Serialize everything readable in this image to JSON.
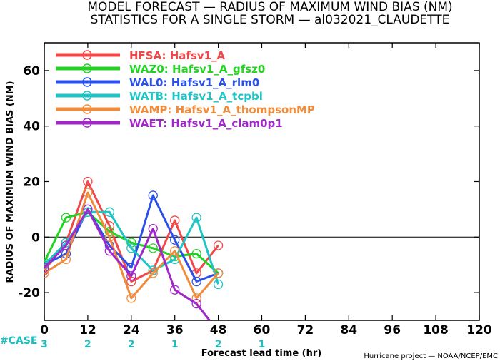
{
  "title_line1": "MODEL FORECAST — RADIUS OF MAXIMUM WIND BIAS (NM)",
  "title_line2": "STATISTICS FOR A SINGLE STORM — al032021_CLAUDETTE",
  "credit": "Hurricane project — NOAA/NCEP/EMC",
  "case_label": "#CASE",
  "chart_data": {
    "type": "line",
    "xlabel": "Forecast lead time (hr)",
    "ylabel": "RADIUS OF MAXIMUM WIND BIAS (NM)",
    "xlim": [
      0,
      120
    ],
    "ylim": [
      -30,
      70
    ],
    "xticks": [
      0,
      12,
      24,
      36,
      48,
      60,
      72,
      84,
      96,
      108,
      120
    ],
    "yticks": [
      -20,
      0,
      20,
      40,
      60
    ],
    "zero_line": true,
    "grid": false,
    "legend_position": "top-left",
    "cases": {
      "x": [
        0,
        12,
        24,
        36,
        48,
        60
      ],
      "counts": [
        "3",
        "2",
        "2",
        "1",
        "2",
        "1"
      ]
    },
    "series": [
      {
        "name": "HFSA: Hafsv1_A",
        "color": "#f04848",
        "x": [
          0,
          6,
          12,
          18,
          24,
          30,
          36,
          42,
          48
        ],
        "y": [
          -12,
          -2,
          20,
          4,
          -16,
          -12,
          6,
          -13,
          -3
        ]
      },
      {
        "name": "WAZ0: Hafsv1_A_gfsz0",
        "color": "#22d322",
        "x": [
          0,
          6,
          12,
          18,
          24,
          30,
          36,
          42,
          48
        ],
        "y": [
          -9,
          7,
          9,
          2,
          -2,
          -4,
          -7,
          -6,
          -13
        ]
      },
      {
        "name": "WAL0: Hafsv1_A_rlm0",
        "color": "#2a50e8",
        "x": [
          0,
          6,
          12,
          18,
          24,
          30,
          36,
          42,
          48
        ],
        "y": [
          -10,
          -6,
          10,
          -3,
          -11,
          15,
          -1,
          -16,
          -13
        ]
      },
      {
        "name": "WATB: Hafsv1_A_tcpbl",
        "color": "#1fc4c4",
        "x": [
          0,
          6,
          12,
          18,
          24,
          30,
          36,
          42,
          48
        ],
        "y": [
          -10,
          -2,
          9,
          9,
          -4,
          -12,
          -8,
          7,
          -17
        ]
      },
      {
        "name": "WAMP: Hafsv1_A_thompsonMP",
        "color": "#f08c3c",
        "x": [
          0,
          6,
          12,
          18,
          24,
          30,
          36,
          42,
          48
        ],
        "y": [
          -13,
          -8,
          16,
          0,
          -22,
          -13,
          -5,
          -22,
          -13
        ]
      },
      {
        "name": "WAET: Hafsv1_A_clam0p1",
        "color": "#a028c8",
        "x": [
          0,
          6,
          12,
          18,
          24,
          30,
          36,
          42,
          48
        ],
        "y": [
          -11,
          -3,
          10,
          -5,
          -14,
          3,
          -19,
          -24,
          -34
        ]
      }
    ]
  }
}
